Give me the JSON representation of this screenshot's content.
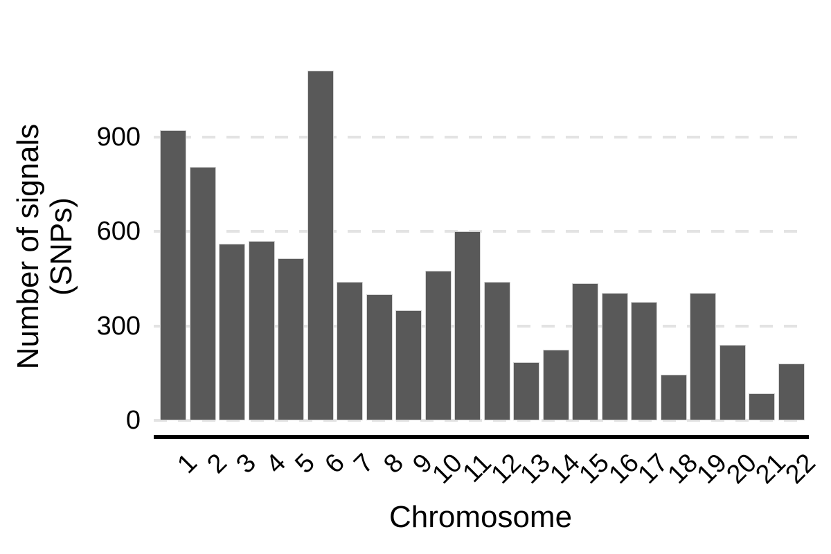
{
  "chart_data": {
    "type": "bar",
    "title": "",
    "xlabel": "Chromosome",
    "ylabel": "Number of signals (SNPs)",
    "ylabel_lines": [
      "Number of signals",
      "(SNPs)"
    ],
    "categories": [
      "1",
      "2",
      "3",
      "4",
      "5",
      "6",
      "7",
      "8",
      "9",
      "10",
      "11",
      "12",
      "13",
      "14",
      "15",
      "16",
      "17",
      "18",
      "19",
      "20",
      "21",
      "22"
    ],
    "values": [
      920,
      805,
      560,
      570,
      515,
      1110,
      440,
      400,
      350,
      475,
      600,
      440,
      185,
      225,
      435,
      405,
      375,
      145,
      405,
      240,
      85,
      180
    ],
    "yticks": [
      0,
      300,
      600,
      900
    ],
    "ylim": [
      0,
      1150
    ],
    "grid": "horizontal-dashed",
    "legend_position": "none",
    "x_tick_rotation_deg": 45,
    "bar_color": "#595959",
    "bar_border_color": "#d4d4d4",
    "gridline_color": "#e3e3e3",
    "axis_line_color": "#000000",
    "text_color": "#000000",
    "background_color": "#ffffff"
  }
}
